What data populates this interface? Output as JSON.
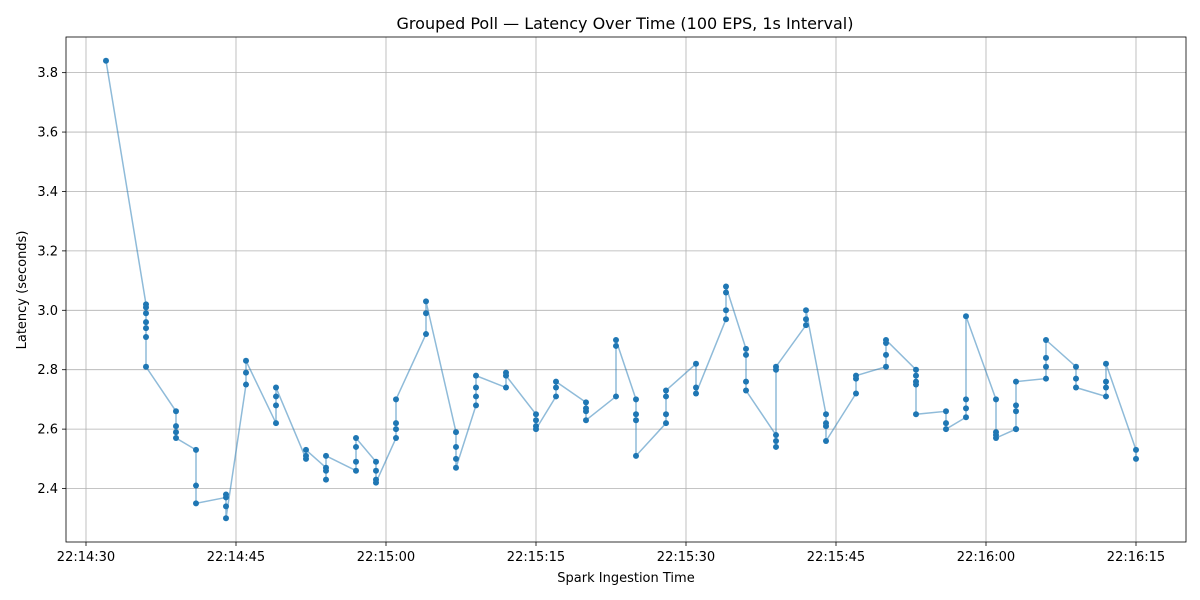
{
  "chart_data": {
    "type": "line",
    "title": "Grouped Poll — Latency Over Time (100 EPS, 1s Interval)",
    "xlabel": "Spark Ingestion Time",
    "ylabel": "Latency (seconds)",
    "x_axis_type": "time",
    "xlim": [
      "22:14:28",
      "22:16:20"
    ],
    "ylim": [
      2.22,
      3.92
    ],
    "grid": true,
    "x_ticks": [
      "22:14:30",
      "22:14:45",
      "22:15:00",
      "22:15:15",
      "22:15:30",
      "22:15:45",
      "22:16:00",
      "22:16:15"
    ],
    "y_ticks": [
      2.4,
      2.6,
      2.8,
      3.0,
      3.2,
      3.4,
      3.6,
      3.8
    ],
    "series_color": "#1f77b4",
    "series": [
      {
        "points": [
          [
            "22:14:32",
            3.84
          ],
          [
            "22:14:36",
            3.02
          ],
          [
            "22:14:36",
            3.01
          ],
          [
            "22:14:36",
            2.99
          ],
          [
            "22:14:36",
            2.96
          ],
          [
            "22:14:36",
            2.94
          ],
          [
            "22:14:36",
            2.91
          ],
          [
            "22:14:36",
            2.81
          ],
          [
            "22:14:39",
            2.66
          ],
          [
            "22:14:39",
            2.61
          ],
          [
            "22:14:39",
            2.59
          ],
          [
            "22:14:39",
            2.57
          ],
          [
            "22:14:41",
            2.53
          ],
          [
            "22:14:41",
            2.41
          ],
          [
            "22:14:41",
            2.35
          ],
          [
            "22:14:44",
            2.37
          ],
          [
            "22:14:44",
            2.38
          ],
          [
            "22:14:44",
            2.34
          ],
          [
            "22:14:44",
            2.3
          ],
          [
            "22:14:46",
            2.75
          ],
          [
            "22:14:46",
            2.79
          ],
          [
            "22:14:46",
            2.83
          ],
          [
            "22:14:49",
            2.62
          ],
          [
            "22:14:49",
            2.68
          ],
          [
            "22:14:49",
            2.71
          ],
          [
            "22:14:49",
            2.74
          ],
          [
            "22:14:52",
            2.5
          ],
          [
            "22:14:52",
            2.51
          ],
          [
            "22:14:52",
            2.53
          ],
          [
            "22:14:54",
            2.47
          ],
          [
            "22:14:54",
            2.43
          ],
          [
            "22:14:54",
            2.46
          ],
          [
            "22:14:54",
            2.51
          ],
          [
            "22:14:57",
            2.46
          ],
          [
            "22:14:57",
            2.49
          ],
          [
            "22:14:57",
            2.54
          ],
          [
            "22:14:57",
            2.57
          ],
          [
            "22:14:59",
            2.49
          ],
          [
            "22:14:59",
            2.46
          ],
          [
            "22:14:59",
            2.43
          ],
          [
            "22:14:59",
            2.42
          ],
          [
            "22:15:01",
            2.57
          ],
          [
            "22:15:01",
            2.6
          ],
          [
            "22:15:01",
            2.62
          ],
          [
            "22:15:01",
            2.7
          ],
          [
            "22:15:04",
            2.92
          ],
          [
            "22:15:04",
            2.99
          ],
          [
            "22:15:04",
            3.03
          ],
          [
            "22:15:07",
            2.59
          ],
          [
            "22:15:07",
            2.54
          ],
          [
            "22:15:07",
            2.5
          ],
          [
            "22:15:07",
            2.47
          ],
          [
            "22:15:09",
            2.68
          ],
          [
            "22:15:09",
            2.71
          ],
          [
            "22:15:09",
            2.74
          ],
          [
            "22:15:09",
            2.78
          ],
          [
            "22:15:12",
            2.74
          ],
          [
            "22:15:12",
            2.79
          ],
          [
            "22:15:12",
            2.78
          ],
          [
            "22:15:15",
            2.65
          ],
          [
            "22:15:15",
            2.63
          ],
          [
            "22:15:15",
            2.61
          ],
          [
            "22:15:15",
            2.6
          ],
          [
            "22:15:17",
            2.71
          ],
          [
            "22:15:17",
            2.74
          ],
          [
            "22:15:17",
            2.76
          ],
          [
            "22:15:20",
            2.69
          ],
          [
            "22:15:20",
            2.67
          ],
          [
            "22:15:20",
            2.66
          ],
          [
            "22:15:20",
            2.63
          ],
          [
            "22:15:23",
            2.71
          ],
          [
            "22:15:23",
            2.88
          ],
          [
            "22:15:23",
            2.9
          ],
          [
            "22:15:25",
            2.7
          ],
          [
            "22:15:25",
            2.65
          ],
          [
            "22:15:25",
            2.63
          ],
          [
            "22:15:25",
            2.51
          ],
          [
            "22:15:28",
            2.62
          ],
          [
            "22:15:28",
            2.65
          ],
          [
            "22:15:28",
            2.71
          ],
          [
            "22:15:28",
            2.73
          ],
          [
            "22:15:31",
            2.82
          ],
          [
            "22:15:31",
            2.74
          ],
          [
            "22:15:31",
            2.72
          ],
          [
            "22:15:34",
            2.97
          ],
          [
            "22:15:34",
            3.0
          ],
          [
            "22:15:34",
            3.06
          ],
          [
            "22:15:34",
            3.08
          ],
          [
            "22:15:36",
            2.87
          ],
          [
            "22:15:36",
            2.85
          ],
          [
            "22:15:36",
            2.76
          ],
          [
            "22:15:36",
            2.73
          ],
          [
            "22:15:39",
            2.58
          ],
          [
            "22:15:39",
            2.56
          ],
          [
            "22:15:39",
            2.54
          ],
          [
            "22:15:39",
            2.8
          ],
          [
            "22:15:39",
            2.81
          ],
          [
            "22:15:42",
            2.95
          ],
          [
            "22:15:42",
            2.97
          ],
          [
            "22:15:42",
            3.0
          ],
          [
            "22:15:44",
            2.65
          ],
          [
            "22:15:44",
            2.62
          ],
          [
            "22:15:44",
            2.61
          ],
          [
            "22:15:44",
            2.56
          ],
          [
            "22:15:47",
            2.72
          ],
          [
            "22:15:47",
            2.77
          ],
          [
            "22:15:47",
            2.78
          ],
          [
            "22:15:50",
            2.81
          ],
          [
            "22:15:50",
            2.85
          ],
          [
            "22:15:50",
            2.89
          ],
          [
            "22:15:50",
            2.9
          ],
          [
            "22:15:53",
            2.8
          ],
          [
            "22:15:53",
            2.78
          ],
          [
            "22:15:53",
            2.76
          ],
          [
            "22:15:53",
            2.75
          ],
          [
            "22:15:53",
            2.65
          ],
          [
            "22:15:56",
            2.66
          ],
          [
            "22:15:56",
            2.62
          ],
          [
            "22:15:56",
            2.6
          ],
          [
            "22:15:58",
            2.64
          ],
          [
            "22:15:58",
            2.67
          ],
          [
            "22:15:58",
            2.7
          ],
          [
            "22:15:58",
            2.98
          ],
          [
            "22:16:01",
            2.7
          ],
          [
            "22:16:01",
            2.59
          ],
          [
            "22:16:01",
            2.58
          ],
          [
            "22:16:01",
            2.57
          ],
          [
            "22:16:03",
            2.6
          ],
          [
            "22:16:03",
            2.6
          ],
          [
            "22:16:03",
            2.66
          ],
          [
            "22:16:03",
            2.68
          ],
          [
            "22:16:03",
            2.76
          ],
          [
            "22:16:06",
            2.77
          ],
          [
            "22:16:06",
            2.81
          ],
          [
            "22:16:06",
            2.84
          ],
          [
            "22:16:06",
            2.9
          ],
          [
            "22:16:09",
            2.81
          ],
          [
            "22:16:09",
            2.77
          ],
          [
            "22:16:09",
            2.74
          ],
          [
            "22:16:12",
            2.71
          ],
          [
            "22:16:12",
            2.74
          ],
          [
            "22:16:12",
            2.76
          ],
          [
            "22:16:12",
            2.82
          ],
          [
            "22:16:15",
            2.53
          ],
          [
            "22:16:15",
            2.5
          ]
        ]
      }
    ]
  }
}
